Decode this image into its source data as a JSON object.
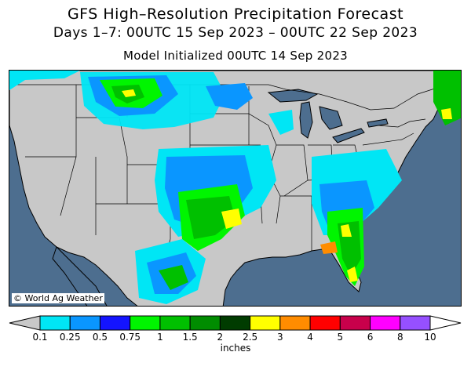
{
  "header": {
    "title": "GFS High–Resolution Precipitation Forecast",
    "period": "Days 1–7: 00UTC 15 Sep 2023 – 00UTC 22 Sep 2023",
    "init": "Model Initialized 00UTC 14 Sep 2023"
  },
  "map": {
    "credit": "© World Ag Weather",
    "colors": {
      "ocean": "#4d6e8f",
      "land": "#c8c8c8",
      "borders": "#000000"
    }
  },
  "legend": {
    "units": "inches",
    "ticks": [
      "0.1",
      "0.25",
      "0.5",
      "0.75",
      "1",
      "1.5",
      "2",
      "2.5",
      "3",
      "4",
      "5",
      "6",
      "8",
      "10"
    ],
    "colors": [
      "#00e6f5",
      "#0a96ff",
      "#1414ff",
      "#00f500",
      "#00c000",
      "#008c00",
      "#003c00",
      "#ffff00",
      "#ff8c00",
      "#ff0000",
      "#c8004b",
      "#ff00ff",
      "#9650ff"
    ],
    "low_color": "#c8c8c8",
    "high_color": "#ffffff"
  }
}
